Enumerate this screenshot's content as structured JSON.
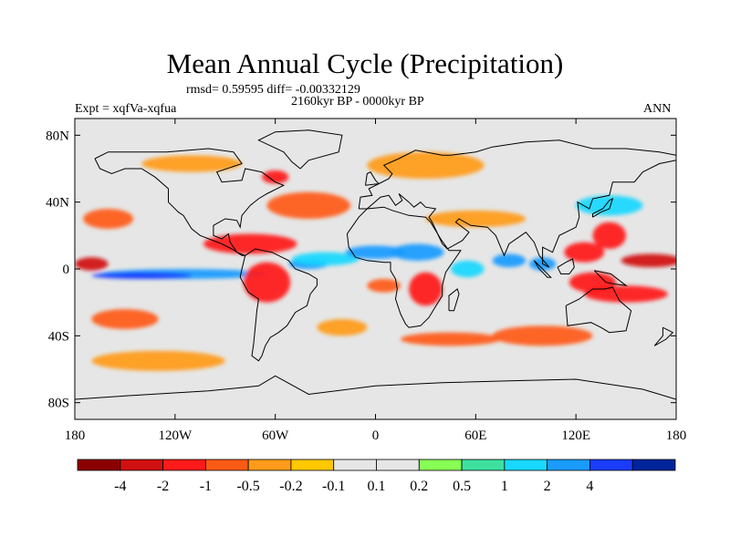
{
  "chart_data": {
    "type": "heatmap",
    "title": "Mean Annual Cycle (Precipitation)",
    "stats_label": "rmsd= 0.59595 diff= -0.00332129",
    "period_label": "2160kyr BP - 0000kyr BP",
    "experiment_label": "Expt = xqfVa-xqfua",
    "season_label": "ANN",
    "x_range": [
      -180,
      180
    ],
    "y_range": [
      -90,
      90
    ],
    "x_ticks": [
      {
        "value": -180,
        "label": "180"
      },
      {
        "value": -120,
        "label": "120W"
      },
      {
        "value": -60,
        "label": "60W"
      },
      {
        "value": 0,
        "label": "0"
      },
      {
        "value": 60,
        "label": "60E"
      },
      {
        "value": 120,
        "label": "120E"
      },
      {
        "value": 180,
        "label": "180"
      }
    ],
    "y_ticks": [
      {
        "value": 80,
        "label": "80N"
      },
      {
        "value": 40,
        "label": "40N"
      },
      {
        "value": 0,
        "label": "0"
      },
      {
        "value": -40,
        "label": "40S"
      },
      {
        "value": -80,
        "label": "80S"
      }
    ],
    "colorbar": {
      "colors": [
        "#8b0000",
        "#d01010",
        "#ff1a1a",
        "#ff5a14",
        "#ff9b1a",
        "#ffc800",
        "#e6e6e6",
        "#e6e6e6",
        "#88ff55",
        "#3ee0a0",
        "#19d8ff",
        "#1a9bff",
        "#1a3cff",
        "#00249a"
      ],
      "levels": [
        "-4",
        "-2",
        "-1",
        "-0.5",
        "-0.2",
        "-0.1",
        "0.1",
        "0.2",
        "0.5",
        "1",
        "2",
        "4"
      ]
    },
    "anomaly_regions": [
      {
        "lon": 165,
        "lat": 5,
        "rx": 18,
        "ry": 4,
        "value": -2.5
      },
      {
        "lon": -170,
        "lat": 3,
        "rx": 10,
        "ry": 4,
        "value": -3
      },
      {
        "lon": -115,
        "lat": -3,
        "rx": 50,
        "ry": 3,
        "value": 1.5
      },
      {
        "lon": -140,
        "lat": -4,
        "rx": 30,
        "ry": 2,
        "value": 2.5
      },
      {
        "lon": -65,
        "lat": -8,
        "rx": 14,
        "ry": 12,
        "value": -1.5
      },
      {
        "lon": -75,
        "lat": 15,
        "rx": 28,
        "ry": 6,
        "value": -1
      },
      {
        "lon": -40,
        "lat": 3,
        "rx": 12,
        "ry": 3,
        "value": 1
      },
      {
        "lon": -30,
        "lat": 6,
        "rx": 20,
        "ry": 4,
        "value": 0.5
      },
      {
        "lon": 0,
        "lat": 10,
        "rx": 18,
        "ry": 4,
        "value": 1
      },
      {
        "lon": 25,
        "lat": 10,
        "rx": 16,
        "ry": 5,
        "value": 1
      },
      {
        "lon": 30,
        "lat": -12,
        "rx": 10,
        "ry": 10,
        "value": -1
      },
      {
        "lon": 5,
        "lat": -10,
        "rx": 10,
        "ry": 4,
        "value": -0.5
      },
      {
        "lon": 55,
        "lat": 0,
        "rx": 10,
        "ry": 5,
        "value": 0.5
      },
      {
        "lon": 80,
        "lat": 5,
        "rx": 10,
        "ry": 4,
        "value": 1.5
      },
      {
        "lon": 100,
        "lat": 3,
        "rx": 8,
        "ry": 4,
        "value": 1
      },
      {
        "lon": 125,
        "lat": 10,
        "rx": 12,
        "ry": 6,
        "value": -1.5
      },
      {
        "lon": 130,
        "lat": -8,
        "rx": 14,
        "ry": 6,
        "value": -1.5
      },
      {
        "lon": 150,
        "lat": -15,
        "rx": 25,
        "ry": 5,
        "value": -1
      },
      {
        "lon": 140,
        "lat": 20,
        "rx": 10,
        "ry": 8,
        "value": -1
      },
      {
        "lon": 140,
        "lat": 38,
        "rx": 20,
        "ry": 6,
        "value": 0.5
      },
      {
        "lon": -160,
        "lat": 30,
        "rx": 15,
        "ry": 6,
        "value": -0.5
      },
      {
        "lon": -40,
        "lat": 38,
        "rx": 25,
        "ry": 8,
        "value": -0.5
      },
      {
        "lon": -60,
        "lat": 55,
        "rx": 8,
        "ry": 4,
        "value": -1
      },
      {
        "lon": -150,
        "lat": -30,
        "rx": 20,
        "ry": 6,
        "value": -0.5
      },
      {
        "lon": -130,
        "lat": -55,
        "rx": 40,
        "ry": 6,
        "value": -0.2
      },
      {
        "lon": 45,
        "lat": -42,
        "rx": 30,
        "ry": 4,
        "value": -0.5
      },
      {
        "lon": 100,
        "lat": -40,
        "rx": 30,
        "ry": 6,
        "value": -0.5
      },
      {
        "lon": 60,
        "lat": 30,
        "rx": 30,
        "ry": 5,
        "value": -0.2
      },
      {
        "lon": 30,
        "lat": 62,
        "rx": 35,
        "ry": 8,
        "value": -0.2
      },
      {
        "lon": -110,
        "lat": 63,
        "rx": 30,
        "ry": 5,
        "value": -0.2
      },
      {
        "lon": -20,
        "lat": -35,
        "rx": 15,
        "ry": 5,
        "value": -0.2
      }
    ]
  }
}
